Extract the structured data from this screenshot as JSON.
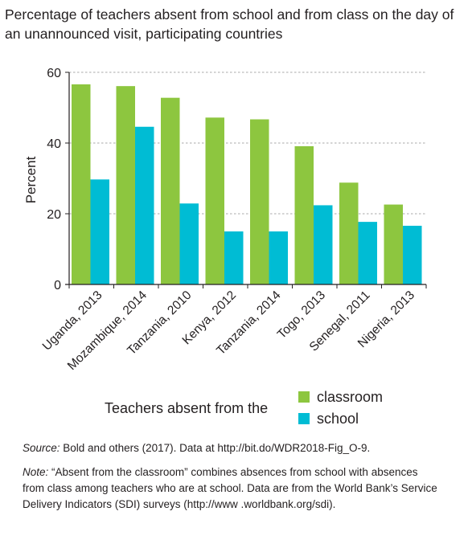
{
  "title": "Percentage of teachers absent from school and from class on the day of an unannounced visit, participating countries",
  "chart_data": {
    "type": "bar",
    "categories": [
      "Uganda, 2013",
      "Mozambique, 2014",
      "Tanzania, 2010",
      "Kenya, 2012",
      "Tanzania, 2014",
      "Togo, 2013",
      "Senegal, 2011",
      "Nigeria, 2013"
    ],
    "series": [
      {
        "name": "classroom",
        "values": [
          56.6,
          56.1,
          52.8,
          47.2,
          46.7,
          39.1,
          28.8,
          22.6
        ],
        "color": "#8dc63f"
      },
      {
        "name": "school",
        "values": [
          29.7,
          44.6,
          22.9,
          15.0,
          15.0,
          22.4,
          17.7,
          16.6
        ],
        "color": "#00bcd4"
      }
    ],
    "ylabel": "Percent",
    "ylim": [
      0,
      60
    ],
    "yticks": [
      0,
      20,
      40,
      60
    ],
    "grid": true,
    "legend": {
      "title": "Teachers absent from the",
      "placement": "bottom"
    }
  },
  "source": {
    "label": "Source:",
    "text": " Bold and others (2017). Data at http://bit.do/WDR2018-Fig_O-9."
  },
  "note": {
    "label": "Note:",
    "text": " “Absent from the classroom” combines absences from school with absences from class among teachers who are at school. Data are from the World Bank’s Service Delivery Indicators (SDI) surveys (http://www .worldbank.org/sdi)."
  }
}
